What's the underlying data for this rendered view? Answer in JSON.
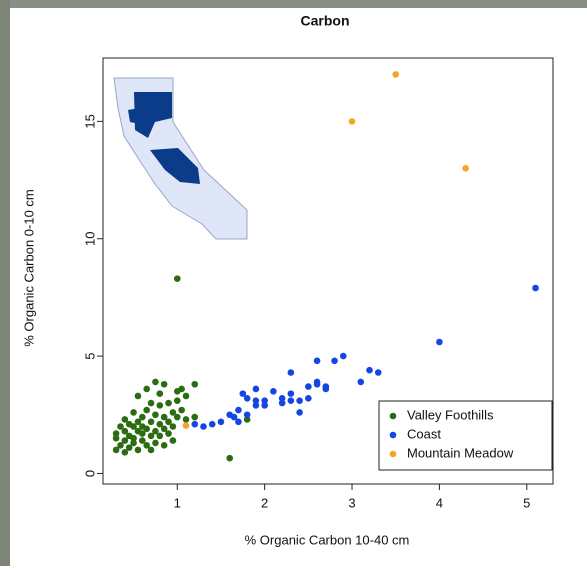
{
  "chart_data": {
    "type": "scatter",
    "title": "Carbon",
    "x_label": "% Organic Carbon 10-40 cm",
    "y_label": "% Organic Carbon 0-10 cm",
    "xlim": [
      0.15,
      5.3
    ],
    "ylim": [
      -0.45,
      17.7
    ],
    "xticks": [
      1,
      2,
      3,
      4,
      5
    ],
    "yticks": [
      0,
      5,
      10,
      15
    ],
    "legend": "bottom-right",
    "series": [
      {
        "name": "Valley Foothills",
        "color": "#2b6b12",
        "x": [
          0.3,
          0.3,
          0.3,
          0.35,
          0.35,
          0.4,
          0.4,
          0.4,
          0.4,
          0.45,
          0.45,
          0.45,
          0.5,
          0.5,
          0.5,
          0.5,
          0.55,
          0.55,
          0.55,
          0.55,
          0.6,
          0.6,
          0.6,
          0.6,
          0.65,
          0.65,
          0.65,
          0.65,
          0.7,
          0.7,
          0.7,
          0.7,
          0.75,
          0.75,
          0.75,
          0.75,
          0.8,
          0.8,
          0.8,
          0.8,
          0.85,
          0.85,
          0.85,
          0.85,
          0.9,
          0.9,
          0.9,
          0.95,
          0.95,
          0.95,
          1.0,
          1.0,
          1.0,
          1.0,
          1.05,
          1.05,
          1.1,
          1.1,
          1.2,
          1.2,
          1.6,
          1.8
        ],
        "values": [
          1.5,
          1.0,
          1.7,
          2.0,
          1.2,
          1.8,
          2.3,
          1.4,
          0.9,
          1.6,
          2.1,
          1.1,
          2.0,
          1.5,
          2.6,
          1.3,
          1.8,
          2.2,
          1.0,
          3.3,
          1.7,
          2.4,
          1.4,
          2.0,
          1.2,
          1.9,
          2.7,
          3.6,
          1.6,
          2.2,
          1.0,
          3.0,
          1.8,
          2.5,
          1.3,
          3.9,
          2.1,
          1.6,
          2.9,
          3.4,
          1.9,
          2.4,
          1.2,
          3.8,
          2.2,
          1.7,
          3.0,
          2.0,
          2.6,
          1.4,
          3.5,
          8.3,
          2.4,
          3.1,
          2.7,
          3.6,
          2.3,
          3.3,
          3.8,
          2.4,
          0.65,
          2.3
        ]
      },
      {
        "name": "Coast",
        "color": "#1446e6",
        "x": [
          5.1,
          4.0,
          3.3,
          3.2,
          3.1,
          2.9,
          2.8,
          2.7,
          2.6,
          2.6,
          2.5,
          2.4,
          2.3,
          2.3,
          2.2,
          2.1,
          2.0,
          1.9,
          1.9,
          1.8,
          1.75,
          1.7,
          1.6,
          1.5,
          1.4,
          1.3,
          1.2,
          1.7,
          2.2,
          2.5,
          2.4,
          2.7,
          1.8,
          2.0,
          2.3,
          1.65,
          1.9,
          2.6
        ],
        "values": [
          7.9,
          5.6,
          4.3,
          4.4,
          3.9,
          5.0,
          4.8,
          3.7,
          4.8,
          3.9,
          3.7,
          2.6,
          4.3,
          3.4,
          3.0,
          3.5,
          3.1,
          3.6,
          2.9,
          3.2,
          3.4,
          2.7,
          2.5,
          2.2,
          2.1,
          2.0,
          2.1,
          2.2,
          3.2,
          3.2,
          3.1,
          3.6,
          2.5,
          2.9,
          3.1,
          2.4,
          3.1,
          3.8
        ]
      },
      {
        "name": "Mountain Meadow",
        "color": "#f2a623",
        "x": [
          3.5,
          3.0,
          4.3,
          1.1
        ],
        "values": [
          17,
          15,
          13,
          2.04
        ]
      }
    ]
  }
}
